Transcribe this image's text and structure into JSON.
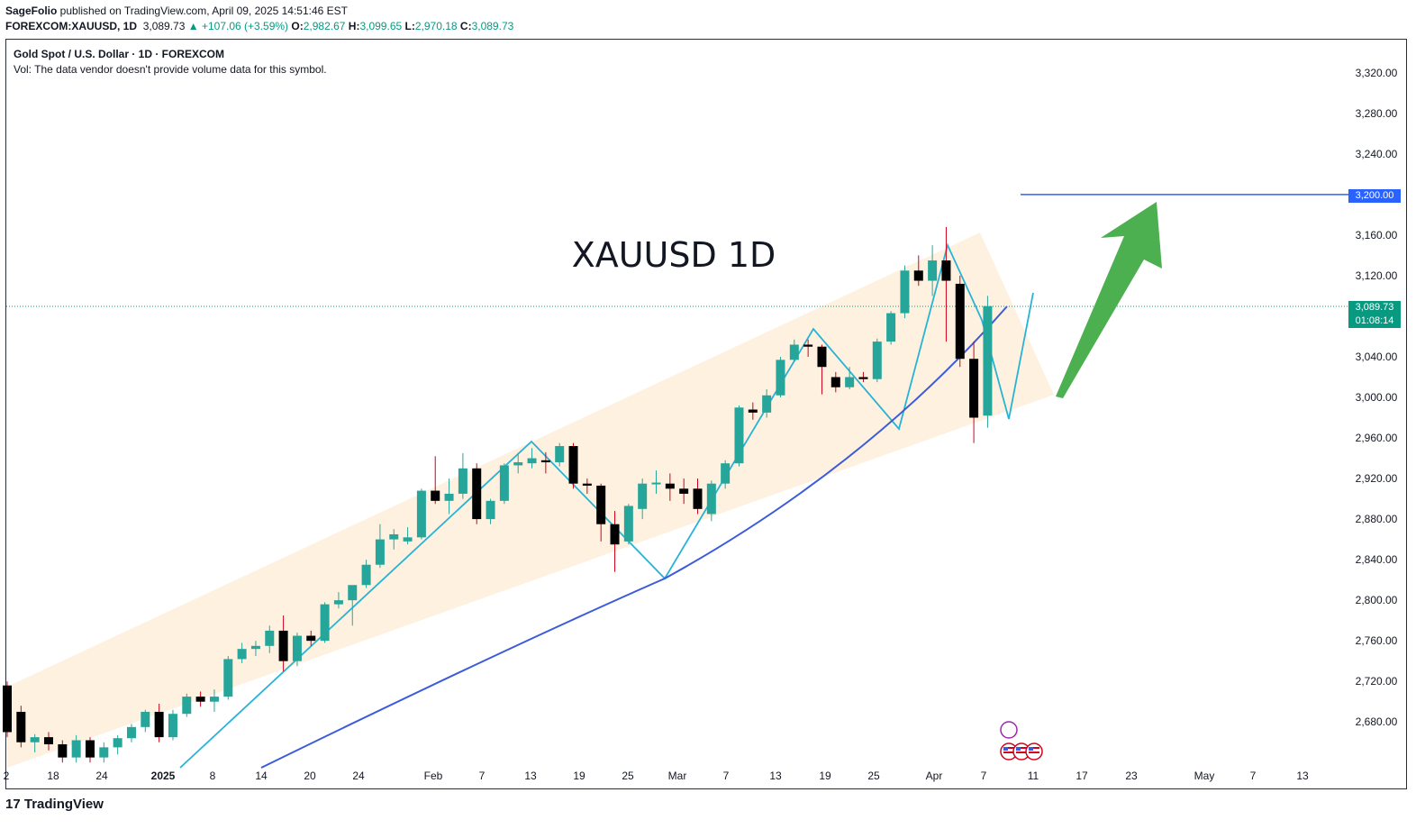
{
  "header": {
    "publisher": "SageFolio",
    "published_text": " published on TradingView.com, April 09, 2025 14:51:46 EST",
    "symbol": "FOREXCOM:XAUUSD, 1D",
    "last": "3,089.73",
    "change": "▲ +107.06 (+3.59%)",
    "o_label": "O:",
    "o": "2,982.67",
    "h_label": "H:",
    "h": "3,099.65",
    "l_label": "L:",
    "l": "2,970.18",
    "c_label": "C:",
    "c": "3,089.73"
  },
  "legend": {
    "title": "Gold Spot / U.S. Dollar · 1D · FOREXCOM",
    "volume_note": "Vol: The data vendor doesn't provide volume data for this symbol."
  },
  "annotations": {
    "chart_label": "XAUUSD 1D",
    "target_price": "3,200.00",
    "current_price": "3,089.73",
    "countdown": "01:08:14"
  },
  "footer": {
    "brand": "TradingView"
  },
  "colors": {
    "up": "#26a69a",
    "down": "#000000",
    "wick": "#d0021b",
    "channel": "#fdebd3",
    "zigzag": "#27b3d6",
    "curve": "#3b5bdb",
    "target_line": "#2962ff",
    "arrow": "#4caf50"
  },
  "chart_data": {
    "type": "candlestick",
    "title": "XAUUSD 1D",
    "y_axis": {
      "range": [
        2640,
        3340
      ],
      "ticks": [
        "3,320.00",
        "3,280.00",
        "3,240.00",
        "3,200.00",
        "3,160.00",
        "3,120.00",
        "3,080.00",
        "3,040.00",
        "3,000.00",
        "2,960.00",
        "2,920.00",
        "2,880.00",
        "2,840.00",
        "2,800.00",
        "2,760.00",
        "2,720.00",
        "2,680.00"
      ]
    },
    "x_axis": {
      "ticks": [
        "2",
        "18",
        "24",
        "2025",
        "8",
        "14",
        "20",
        "24",
        "Feb",
        "7",
        "13",
        "19",
        "25",
        "Mar",
        "7",
        "13",
        "19",
        "25",
        "Apr",
        "7",
        "11",
        "17",
        "23",
        "May",
        "7",
        "13"
      ]
    },
    "candles": [
      {
        "o": 2716,
        "h": 2720,
        "l": 2665,
        "c": 2670
      },
      {
        "o": 2690,
        "h": 2696,
        "l": 2655,
        "c": 2660
      },
      {
        "o": 2660,
        "h": 2668,
        "l": 2650,
        "c": 2665
      },
      {
        "o": 2665,
        "h": 2670,
        "l": 2652,
        "c": 2658
      },
      {
        "o": 2658,
        "h": 2662,
        "l": 2640,
        "c": 2645
      },
      {
        "o": 2645,
        "h": 2667,
        "l": 2640,
        "c": 2662
      },
      {
        "o": 2662,
        "h": 2665,
        "l": 2640,
        "c": 2645
      },
      {
        "o": 2645,
        "h": 2660,
        "l": 2640,
        "c": 2655
      },
      {
        "o": 2655,
        "h": 2667,
        "l": 2648,
        "c": 2664
      },
      {
        "o": 2664,
        "h": 2678,
        "l": 2660,
        "c": 2675
      },
      {
        "o": 2675,
        "h": 2692,
        "l": 2670,
        "c": 2690
      },
      {
        "o": 2690,
        "h": 2698,
        "l": 2660,
        "c": 2665
      },
      {
        "o": 2665,
        "h": 2692,
        "l": 2662,
        "c": 2688
      },
      {
        "o": 2688,
        "h": 2708,
        "l": 2685,
        "c": 2705
      },
      {
        "o": 2705,
        "h": 2710,
        "l": 2695,
        "c": 2700
      },
      {
        "o": 2700,
        "h": 2712,
        "l": 2690,
        "c": 2705
      },
      {
        "o": 2705,
        "h": 2745,
        "l": 2702,
        "c": 2742
      },
      {
        "o": 2742,
        "h": 2758,
        "l": 2738,
        "c": 2752
      },
      {
        "o": 2752,
        "h": 2760,
        "l": 2745,
        "c": 2755
      },
      {
        "o": 2755,
        "h": 2775,
        "l": 2748,
        "c": 2770
      },
      {
        "o": 2770,
        "h": 2785,
        "l": 2730,
        "c": 2740
      },
      {
        "o": 2740,
        "h": 2768,
        "l": 2735,
        "c": 2765
      },
      {
        "o": 2765,
        "h": 2770,
        "l": 2755,
        "c": 2760
      },
      {
        "o": 2760,
        "h": 2798,
        "l": 2758,
        "c": 2796
      },
      {
        "o": 2796,
        "h": 2808,
        "l": 2792,
        "c": 2800
      },
      {
        "o": 2800,
        "h": 2812,
        "l": 2775,
        "c": 2815
      },
      {
        "o": 2815,
        "h": 2840,
        "l": 2812,
        "c": 2835
      },
      {
        "o": 2835,
        "h": 2875,
        "l": 2832,
        "c": 2860
      },
      {
        "o": 2860,
        "h": 2870,
        "l": 2850,
        "c": 2865
      },
      {
        "o": 2858,
        "h": 2872,
        "l": 2855,
        "c": 2862
      },
      {
        "o": 2862,
        "h": 2910,
        "l": 2860,
        "c": 2908
      },
      {
        "o": 2908,
        "h": 2942,
        "l": 2895,
        "c": 2898
      },
      {
        "o": 2898,
        "h": 2920,
        "l": 2885,
        "c": 2905
      },
      {
        "o": 2905,
        "h": 2945,
        "l": 2900,
        "c": 2930
      },
      {
        "o": 2930,
        "h": 2935,
        "l": 2875,
        "c": 2880
      },
      {
        "o": 2880,
        "h": 2900,
        "l": 2875,
        "c": 2898
      },
      {
        "o": 2898,
        "h": 2935,
        "l": 2895,
        "c": 2933
      },
      {
        "o": 2933,
        "h": 2945,
        "l": 2925,
        "c": 2936
      },
      {
        "o": 2935,
        "h": 2950,
        "l": 2930,
        "c": 2940
      },
      {
        "o": 2938,
        "h": 2946,
        "l": 2925,
        "c": 2936
      },
      {
        "o": 2936,
        "h": 2955,
        "l": 2932,
        "c": 2952
      },
      {
        "o": 2952,
        "h": 2955,
        "l": 2910,
        "c": 2915
      },
      {
        "o": 2915,
        "h": 2920,
        "l": 2905,
        "c": 2913
      },
      {
        "o": 2913,
        "h": 2915,
        "l": 2858,
        "c": 2875
      },
      {
        "o": 2875,
        "h": 2888,
        "l": 2828,
        "c": 2855
      },
      {
        "o": 2858,
        "h": 2895,
        "l": 2855,
        "c": 2893
      },
      {
        "o": 2890,
        "h": 2920,
        "l": 2880,
        "c": 2915
      },
      {
        "o": 2915,
        "h": 2928,
        "l": 2905,
        "c": 2916
      },
      {
        "o": 2915,
        "h": 2925,
        "l": 2898,
        "c": 2910
      },
      {
        "o": 2910,
        "h": 2920,
        "l": 2895,
        "c": 2905
      },
      {
        "o": 2910,
        "h": 2920,
        "l": 2885,
        "c": 2890
      },
      {
        "o": 2885,
        "h": 2918,
        "l": 2878,
        "c": 2915
      },
      {
        "o": 2915,
        "h": 2938,
        "l": 2910,
        "c": 2935
      },
      {
        "o": 2935,
        "h": 2992,
        "l": 2932,
        "c": 2990
      },
      {
        "o": 2988,
        "h": 2995,
        "l": 2978,
        "c": 2985
      },
      {
        "o": 2985,
        "h": 3008,
        "l": 2980,
        "c": 3002
      },
      {
        "o": 3002,
        "h": 3040,
        "l": 3000,
        "c": 3037
      },
      {
        "o": 3037,
        "h": 3057,
        "l": 3035,
        "c": 3052
      },
      {
        "o": 3052,
        "h": 3057,
        "l": 3040,
        "c": 3050
      },
      {
        "o": 3050,
        "h": 3052,
        "l": 3003,
        "c": 3030
      },
      {
        "o": 3020,
        "h": 3025,
        "l": 3005,
        "c": 3010
      },
      {
        "o": 3010,
        "h": 3030,
        "l": 3008,
        "c": 3020
      },
      {
        "o": 3020,
        "h": 3025,
        "l": 3015,
        "c": 3018
      },
      {
        "o": 3018,
        "h": 3058,
        "l": 3015,
        "c": 3055
      },
      {
        "o": 3055,
        "h": 3085,
        "l": 3052,
        "c": 3083
      },
      {
        "o": 3083,
        "h": 3130,
        "l": 3078,
        "c": 3125
      },
      {
        "o": 3125,
        "h": 3140,
        "l": 3110,
        "c": 3115
      },
      {
        "o": 3115,
        "h": 3150,
        "l": 3100,
        "c": 3135
      },
      {
        "o": 3135,
        "h": 3168,
        "l": 3055,
        "c": 3115
      },
      {
        "o": 3112,
        "h": 3120,
        "l": 3030,
        "c": 3038
      },
      {
        "o": 3038,
        "h": 3055,
        "l": 2955,
        "c": 2980
      },
      {
        "o": 2982,
        "h": 3100,
        "l": 2970,
        "c": 3090
      }
    ],
    "target_level": 3200,
    "last_price": 3089.73
  }
}
